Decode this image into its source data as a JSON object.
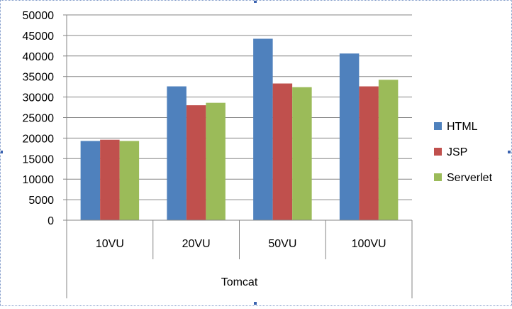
{
  "chart_data": {
    "type": "bar",
    "title": "",
    "xlabel": "",
    "ylabel": "",
    "group_label": "Tomcat",
    "categories": [
      "10VU",
      "20VU",
      "50VU",
      "100VU"
    ],
    "series": [
      {
        "name": "HTML",
        "color": "#4f81bd",
        "values": [
          19300,
          32600,
          44200,
          40600
        ]
      },
      {
        "name": "JSP",
        "color": "#c0504d",
        "values": [
          19600,
          28000,
          33300,
          32600
        ]
      },
      {
        "name": "Serverlet",
        "color": "#9bbb59",
        "values": [
          19300,
          28600,
          32400,
          34200
        ]
      }
    ],
    "ylim": [
      0,
      50000
    ],
    "yticks": [
      0,
      5000,
      10000,
      15000,
      20000,
      25000,
      30000,
      35000,
      40000,
      45000,
      50000
    ],
    "grid": true,
    "legend_position": "right"
  }
}
